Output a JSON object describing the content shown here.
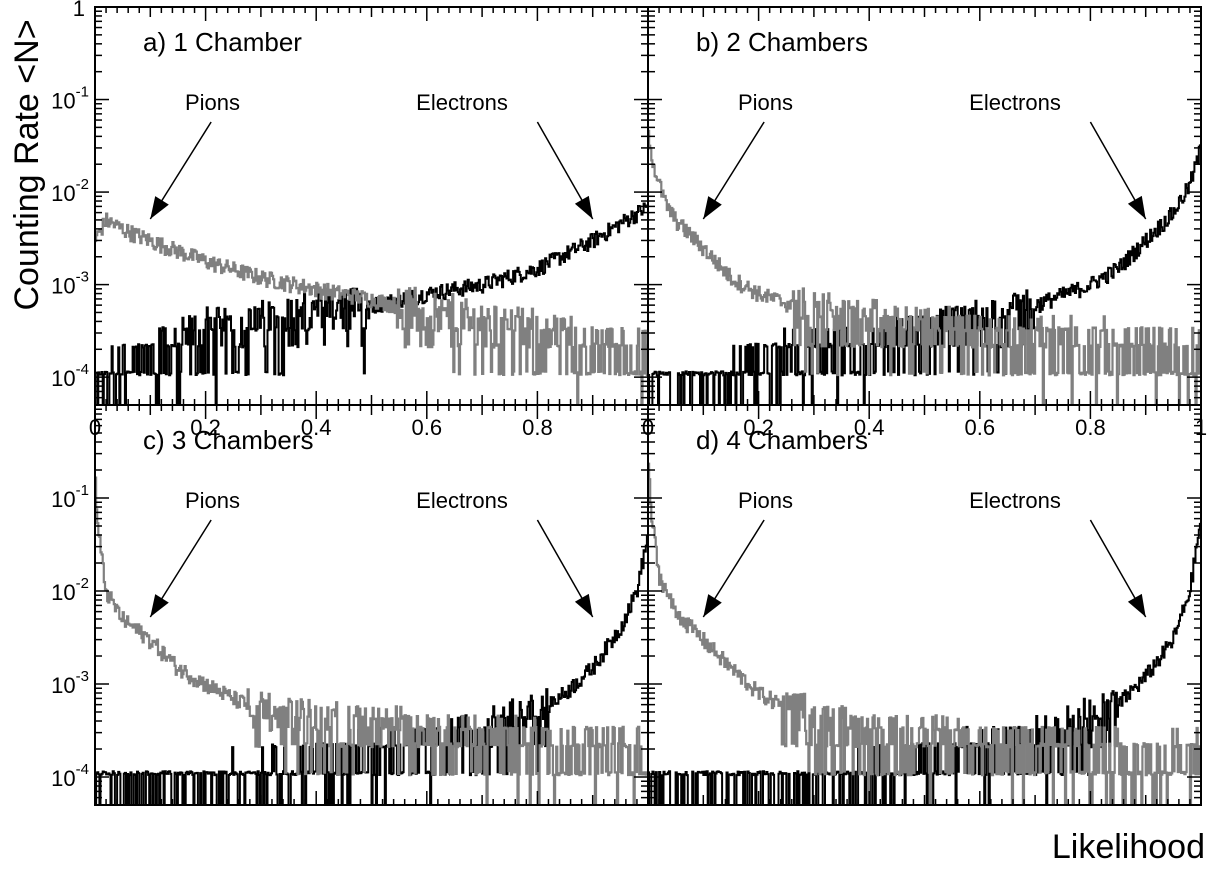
{
  "figure": {
    "ylabel": "Counting Rate <N>",
    "xlabel": "Likelihood"
  },
  "colors": {
    "electrons": "#000000",
    "pions": "#808080",
    "frame": "#000000"
  },
  "chart_data": [
    {
      "type": "line",
      "title": "a) 1 Chamber",
      "yscale": "log",
      "xlim": [
        0,
        1
      ],
      "ylim": [
        5e-05,
        1
      ],
      "xticks": [
        "0",
        "0.2",
        "0.4",
        "0.6",
        "0.8",
        ""
      ],
      "yticks": [
        {
          "base": "10",
          "exp": "-4",
          "value": 0.0001
        },
        {
          "base": "10",
          "exp": "-3",
          "value": 0.001
        },
        {
          "base": "10",
          "exp": "-2",
          "value": 0.01
        },
        {
          "base": "10",
          "exp": "-1",
          "value": 0.1
        },
        {
          "base": "1",
          "exp": "",
          "value": 1
        }
      ],
      "annotations": [
        {
          "text": "Pions",
          "points_to": [
            0.1,
            0.0045
          ]
        },
        {
          "text": "Electrons",
          "points_to": [
            0.9,
            0.0045
          ]
        }
      ],
      "series": [
        {
          "name": "",
          "group": "electrons",
          "x": [
            0,
            0.1,
            0.2,
            0.3,
            0.4,
            0.5,
            0.6,
            0.7,
            0.8,
            0.9,
            1.0
          ],
          "y": [
            0.0001,
            0.0002,
            0.0003,
            0.0004,
            0.0005,
            0.0006,
            0.0008,
            0.001,
            0.0015,
            0.003,
            0.007
          ]
        },
        {
          "name": "",
          "group": "pions",
          "x": [
            0,
            0.02,
            0.05,
            0.1,
            0.2,
            0.3,
            0.4,
            0.5,
            0.6,
            0.7,
            0.8,
            1.0
          ],
          "y": [
            0.003,
            0.005,
            0.004,
            0.003,
            0.0018,
            0.0012,
            0.0009,
            0.0007,
            0.0005,
            0.0004,
            0.0003,
            0.0002
          ]
        }
      ]
    },
    {
      "type": "line",
      "title": "b) 2 Chambers",
      "yscale": "log",
      "xlim": [
        0,
        1
      ],
      "ylim": [
        5e-05,
        1
      ],
      "xticks": [
        "0",
        "0.2",
        "0.4",
        "0.6",
        "0.8",
        "1"
      ],
      "yticks": [],
      "annotations": [
        {
          "text": "Pions",
          "points_to": [
            0.1,
            0.0045
          ]
        },
        {
          "text": "Electrons",
          "points_to": [
            0.9,
            0.0045
          ]
        }
      ],
      "series": [
        {
          "name": "",
          "group": "electrons",
          "x": [
            0,
            0.1,
            0.2,
            0.3,
            0.4,
            0.5,
            0.6,
            0.7,
            0.8,
            0.85,
            0.9,
            0.95,
            0.98,
            1.0
          ],
          "y": [
            0.0001,
            0.0001,
            0.00015,
            0.0002,
            0.0002,
            0.0003,
            0.0004,
            0.0006,
            0.001,
            0.0015,
            0.003,
            0.006,
            0.012,
            0.03
          ]
        },
        {
          "name": "",
          "group": "pions",
          "x": [
            0,
            0.01,
            0.03,
            0.05,
            0.1,
            0.15,
            0.2,
            0.3,
            0.4,
            0.6,
            0.8,
            1.0
          ],
          "y": [
            0.05,
            0.02,
            0.008,
            0.005,
            0.0025,
            0.0012,
            0.0008,
            0.0005,
            0.0004,
            0.0003,
            0.00025,
            0.0002
          ]
        }
      ]
    },
    {
      "type": "line",
      "title": "c) 3 Chambers",
      "yscale": "log",
      "xlim": [
        0,
        1
      ],
      "ylim": [
        5e-05,
        1
      ],
      "xticks": [],
      "yticks": [
        {
          "base": "10",
          "exp": "-4",
          "value": 0.0001
        },
        {
          "base": "10",
          "exp": "-3",
          "value": 0.001
        },
        {
          "base": "10",
          "exp": "-2",
          "value": 0.01
        },
        {
          "base": "10",
          "exp": "-1",
          "value": 0.1
        }
      ],
      "annotations": [
        {
          "text": "Pions",
          "points_to": [
            0.1,
            0.0045
          ]
        },
        {
          "text": "Electrons",
          "points_to": [
            0.9,
            0.0045
          ]
        }
      ],
      "series": [
        {
          "name": "",
          "group": "electrons",
          "x": [
            0,
            0.1,
            0.2,
            0.3,
            0.4,
            0.5,
            0.6,
            0.7,
            0.8,
            0.85,
            0.9,
            0.95,
            0.98,
            1.0
          ],
          "y": [
            0.0001,
            0.0001,
            0.0001,
            0.00012,
            0.00015,
            0.0002,
            0.00025,
            0.0003,
            0.0005,
            0.0008,
            0.0015,
            0.004,
            0.01,
            0.04
          ]
        },
        {
          "name": "",
          "group": "pions",
          "x": [
            0,
            0.005,
            0.02,
            0.05,
            0.1,
            0.15,
            0.2,
            0.3,
            0.4,
            0.6,
            0.8,
            1.0
          ],
          "y": [
            0.2,
            0.05,
            0.01,
            0.005,
            0.003,
            0.0015,
            0.001,
            0.0005,
            0.0004,
            0.0003,
            0.00025,
            0.0002
          ]
        }
      ]
    },
    {
      "type": "line",
      "title": "d) 4 Chambers",
      "yscale": "log",
      "xlim": [
        0,
        1
      ],
      "ylim": [
        5e-05,
        1
      ],
      "xticks": [],
      "yticks": [],
      "annotations": [
        {
          "text": "Pions",
          "points_to": [
            0.1,
            0.0045
          ]
        },
        {
          "text": "Electrons",
          "points_to": [
            0.9,
            0.0045
          ]
        }
      ],
      "series": [
        {
          "name": "",
          "group": "electrons",
          "x": [
            0,
            0.1,
            0.2,
            0.3,
            0.4,
            0.5,
            0.6,
            0.7,
            0.8,
            0.85,
            0.9,
            0.95,
            0.98,
            1.0
          ],
          "y": [
            0.0001,
            0.0001,
            0.0001,
            0.0001,
            0.00012,
            0.00015,
            0.0002,
            0.00025,
            0.0004,
            0.0006,
            0.0012,
            0.003,
            0.01,
            0.06
          ]
        },
        {
          "name": "",
          "group": "pions",
          "x": [
            0,
            0.005,
            0.02,
            0.05,
            0.1,
            0.15,
            0.2,
            0.3,
            0.4,
            0.6,
            0.8,
            1.0
          ],
          "y": [
            0.3,
            0.08,
            0.015,
            0.006,
            0.003,
            0.0015,
            0.0008,
            0.0004,
            0.0003,
            0.00025,
            0.0002,
            0.00018
          ]
        }
      ]
    }
  ]
}
